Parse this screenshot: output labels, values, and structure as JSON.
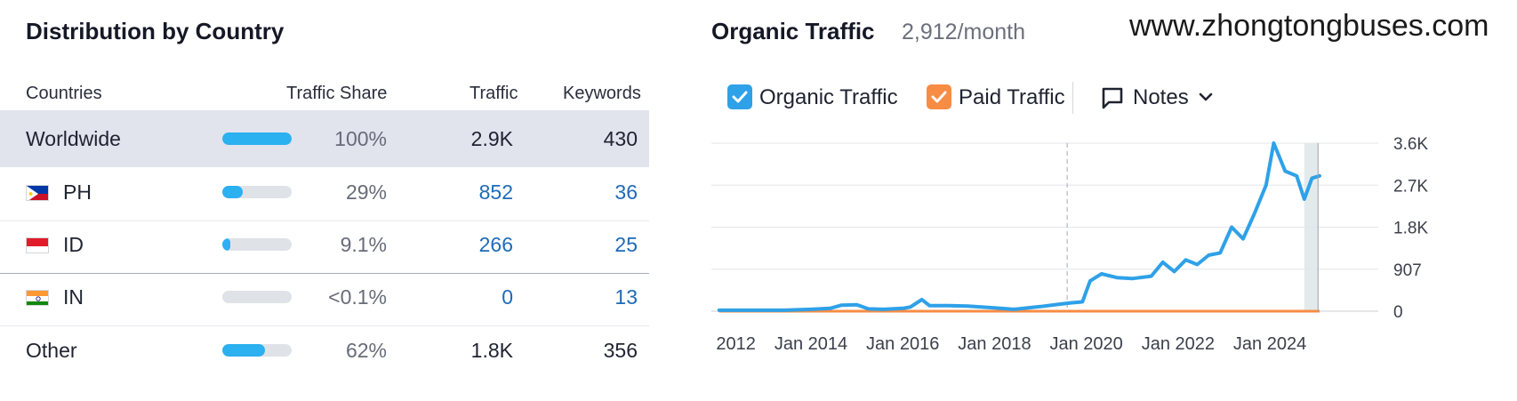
{
  "distribution": {
    "title": "Distribution by Country",
    "columns": {
      "countries": "Countries",
      "traffic_share": "Traffic Share",
      "traffic": "Traffic",
      "keywords": "Keywords"
    },
    "rows": [
      {
        "name": "Worldwide",
        "flag": "",
        "share_label": "100%",
        "share_fraction": 1.0,
        "traffic": "2.9K",
        "keywords": "430",
        "selected": true,
        "linked": false
      },
      {
        "name": "PH",
        "flag": "philippines-flag-icon",
        "share_label": "29%",
        "share_fraction": 0.29,
        "traffic": "852",
        "keywords": "36",
        "selected": false,
        "linked": true
      },
      {
        "name": "ID",
        "flag": "indonesia-flag-icon",
        "share_label": "9.1%",
        "share_fraction": 0.091,
        "traffic": "266",
        "keywords": "25",
        "selected": false,
        "linked": true
      },
      {
        "name": "IN",
        "flag": "india-flag-icon",
        "share_label": "<0.1%",
        "share_fraction": 0.0,
        "traffic": "0",
        "keywords": "13",
        "selected": false,
        "linked": true
      },
      {
        "name": "Other",
        "flag": "",
        "share_label": "62%",
        "share_fraction": 0.62,
        "traffic": "1.8K",
        "keywords": "356",
        "selected": false,
        "linked": false
      }
    ]
  },
  "organic": {
    "title": "Organic Traffic",
    "subtitle": "2,912/month",
    "watermark": "www.zhongtongbuses.com",
    "legend": [
      {
        "label": "Organic Traffic",
        "checked": true,
        "color": "#2ea1e8"
      },
      {
        "label": "Paid Traffic",
        "checked": true,
        "color": "#f78c44"
      }
    ],
    "notes_label": "Notes"
  },
  "chart_data": {
    "type": "line",
    "x_labels": [
      "Jan 2012",
      "Jan 2014",
      "Jan 2016",
      "Jan 2018",
      "Jan 2020",
      "Jan 2022",
      "Jan 2024"
    ],
    "y_labels": [
      "0",
      "907",
      "1.8K",
      "2.7K",
      "3.6K"
    ],
    "ylim": [
      0,
      3600
    ],
    "grid": true,
    "legend_placement": "top-left",
    "marker_date": "2019-08",
    "series": [
      {
        "name": "Organic Traffic",
        "color": "#2ea1e8",
        "points": [
          [
            "2012-01",
            20
          ],
          [
            "2013-06",
            20
          ],
          [
            "2014-01",
            40
          ],
          [
            "2014-06",
            60
          ],
          [
            "2014-09",
            130
          ],
          [
            "2015-01",
            140
          ],
          [
            "2015-04",
            50
          ],
          [
            "2015-08",
            40
          ],
          [
            "2016-01",
            60
          ],
          [
            "2016-03",
            90
          ],
          [
            "2016-06",
            250
          ],
          [
            "2016-08",
            120
          ],
          [
            "2017-01",
            120
          ],
          [
            "2017-06",
            110
          ],
          [
            "2018-01",
            70
          ],
          [
            "2018-06",
            40
          ],
          [
            "2019-01",
            100
          ],
          [
            "2019-06",
            150
          ],
          [
            "2019-09",
            180
          ],
          [
            "2019-12",
            200
          ],
          [
            "2020-02",
            650
          ],
          [
            "2020-05",
            800
          ],
          [
            "2020-09",
            720
          ],
          [
            "2021-01",
            700
          ],
          [
            "2021-06",
            750
          ],
          [
            "2021-09",
            1050
          ],
          [
            "2021-12",
            850
          ],
          [
            "2022-03",
            1100
          ],
          [
            "2022-06",
            1000
          ],
          [
            "2022-09",
            1200
          ],
          [
            "2022-12",
            1250
          ],
          [
            "2023-03",
            1800
          ],
          [
            "2023-06",
            1550
          ],
          [
            "2023-09",
            2100
          ],
          [
            "2023-12",
            2700
          ],
          [
            "2024-02",
            3600
          ],
          [
            "2024-05",
            3000
          ],
          [
            "2024-08",
            2900
          ],
          [
            "2024-10",
            2400
          ],
          [
            "2024-12",
            2850
          ],
          [
            "2025-02",
            2900
          ]
        ]
      },
      {
        "name": "Paid Traffic",
        "color": "#f78c44",
        "points": [
          [
            "2012-01",
            0
          ],
          [
            "2025-02",
            0
          ]
        ]
      }
    ]
  }
}
